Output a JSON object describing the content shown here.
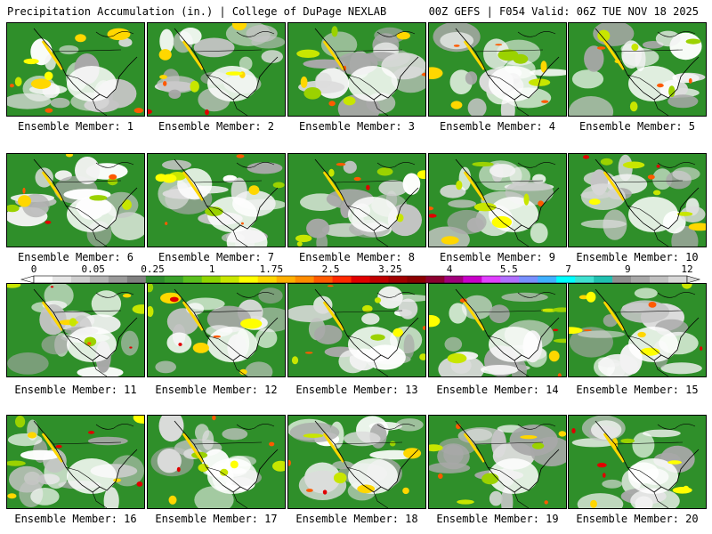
{
  "header": {
    "left": "Precipitation Accumulation (in.) | College of DuPage NEXLAB",
    "right": "00Z GEFS | F054 Valid: 06Z TUE NOV 18 2025"
  },
  "members": [
    "Ensemble Member: 1",
    "Ensemble Member: 2",
    "Ensemble Member: 3",
    "Ensemble Member: 4",
    "Ensemble Member: 5",
    "Ensemble Member: 6",
    "Ensemble Member: 7",
    "Ensemble Member: 8",
    "Ensemble Member: 9",
    "Ensemble Member: 10",
    "Ensemble Member: 11",
    "Ensemble Member: 12",
    "Ensemble Member: 13",
    "Ensemble Member: 14",
    "Ensemble Member: 15",
    "Ensemble Member: 16",
    "Ensemble Member: 17",
    "Ensemble Member: 18",
    "Ensemble Member: 19",
    "Ensemble Member: 20"
  ],
  "colorbar": {
    "labels": [
      "0",
      "0.05",
      "0.25",
      "1",
      "1.75",
      "2.5",
      "3.25",
      "4",
      "5.5",
      "7",
      "9",
      "12"
    ],
    "colors": [
      "#ffffff",
      "#e6e6e6",
      "#cfcfcf",
      "#b4b4b4",
      "#9a9a9a",
      "#808080",
      "#2e8b2e",
      "#3aa12a",
      "#5abf1e",
      "#8fd400",
      "#c8e600",
      "#ffff00",
      "#ffd700",
      "#ffb000",
      "#ff8c00",
      "#ff5a00",
      "#ff2a00",
      "#e00000",
      "#c00000",
      "#a00000",
      "#8b0000",
      "#8b0030",
      "#a0007a",
      "#c800c8",
      "#e040ff",
      "#b070ff",
      "#7890ff",
      "#40b0ff",
      "#00ffff",
      "#40e0d0",
      "#20c0b0",
      "#909090",
      "#a8a8a8",
      "#c0c0c0",
      "#d8d8d8"
    ]
  }
}
